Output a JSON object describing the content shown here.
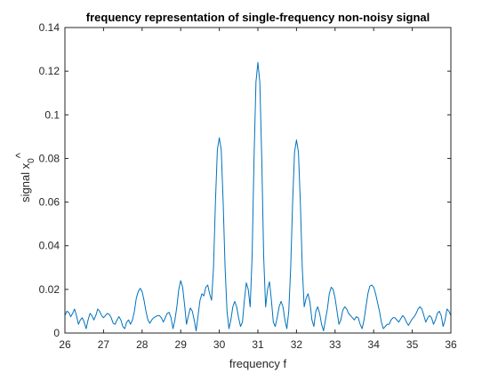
{
  "chart_data": {
    "type": "line",
    "title": "frequency representation of single-frequency non-noisy signal",
    "xlabel": "frequency f",
    "ylabel_text": "signal x",
    "ylabel_hat": "^",
    "ylabel_sub": "0",
    "xlim": [
      26,
      36
    ],
    "ylim": [
      0,
      0.14
    ],
    "xticks": [
      26,
      27,
      28,
      29,
      30,
      31,
      32,
      33,
      34,
      35,
      36
    ],
    "xtick_labels": [
      "26",
      "27",
      "28",
      "29",
      "30",
      "31",
      "32",
      "33",
      "34",
      "35",
      "36"
    ],
    "yticks": [
      0,
      0.02,
      0.04,
      0.06,
      0.08,
      0.1,
      0.12,
      0.14
    ],
    "ytick_labels": [
      "0",
      "0.02",
      "0.04",
      "0.06",
      "0.08",
      "0.1",
      "0.12",
      "0.14"
    ],
    "grid": false,
    "legend": "none",
    "series": [
      {
        "color": "#0072BD",
        "points": [
          [
            26.0,
            0.008
          ],
          [
            26.05,
            0.01
          ],
          [
            26.1,
            0.0095
          ],
          [
            26.15,
            0.0075
          ],
          [
            26.2,
            0.009
          ],
          [
            26.25,
            0.011
          ],
          [
            26.3,
            0.008
          ],
          [
            26.35,
            0.004
          ],
          [
            26.4,
            0.006
          ],
          [
            26.45,
            0.007
          ],
          [
            26.5,
            0.005
          ],
          [
            26.55,
            0.002
          ],
          [
            26.6,
            0.006
          ],
          [
            26.65,
            0.009
          ],
          [
            26.7,
            0.008
          ],
          [
            26.75,
            0.006
          ],
          [
            26.8,
            0.008
          ],
          [
            26.85,
            0.011
          ],
          [
            26.9,
            0.01
          ],
          [
            26.95,
            0.008
          ],
          [
            27.0,
            0.007
          ],
          [
            27.05,
            0.008
          ],
          [
            27.1,
            0.009
          ],
          [
            27.15,
            0.0085
          ],
          [
            27.2,
            0.007
          ],
          [
            27.25,
            0.0045
          ],
          [
            27.3,
            0.004
          ],
          [
            27.35,
            0.006
          ],
          [
            27.4,
            0.0075
          ],
          [
            27.45,
            0.006
          ],
          [
            27.5,
            0.003
          ],
          [
            27.55,
            0.002
          ],
          [
            27.6,
            0.005
          ],
          [
            27.65,
            0.006
          ],
          [
            27.7,
            0.004
          ],
          [
            27.75,
            0.006
          ],
          [
            27.8,
            0.01
          ],
          [
            27.85,
            0.016
          ],
          [
            27.9,
            0.019
          ],
          [
            27.95,
            0.0205
          ],
          [
            28.0,
            0.019
          ],
          [
            28.05,
            0.015
          ],
          [
            28.1,
            0.01
          ],
          [
            28.15,
            0.006
          ],
          [
            28.2,
            0.0045
          ],
          [
            28.25,
            0.006
          ],
          [
            28.3,
            0.007
          ],
          [
            28.35,
            0.0075
          ],
          [
            28.4,
            0.008
          ],
          [
            28.45,
            0.008
          ],
          [
            28.5,
            0.007
          ],
          [
            28.55,
            0.005
          ],
          [
            28.6,
            0.007
          ],
          [
            28.65,
            0.009
          ],
          [
            28.7,
            0.0095
          ],
          [
            28.75,
            0.007
          ],
          [
            28.8,
            0.002
          ],
          [
            28.85,
            0.006
          ],
          [
            28.9,
            0.012
          ],
          [
            28.95,
            0.02
          ],
          [
            29.0,
            0.024
          ],
          [
            29.05,
            0.021
          ],
          [
            29.1,
            0.013
          ],
          [
            29.15,
            0.004
          ],
          [
            29.2,
            0.008
          ],
          [
            29.25,
            0.0115
          ],
          [
            29.3,
            0.01
          ],
          [
            29.35,
            0.006
          ],
          [
            29.4,
            0.001
          ],
          [
            29.45,
            0.008
          ],
          [
            29.5,
            0.015
          ],
          [
            29.55,
            0.018
          ],
          [
            29.6,
            0.017
          ],
          [
            29.65,
            0.021
          ],
          [
            29.7,
            0.022
          ],
          [
            29.75,
            0.018
          ],
          [
            29.8,
            0.015
          ],
          [
            29.85,
            0.03
          ],
          [
            29.9,
            0.06
          ],
          [
            29.95,
            0.084
          ],
          [
            30.0,
            0.0895
          ],
          [
            30.05,
            0.084
          ],
          [
            30.1,
            0.06
          ],
          [
            30.15,
            0.03
          ],
          [
            30.2,
            0.01
          ],
          [
            30.25,
            0.002
          ],
          [
            30.3,
            0.006
          ],
          [
            30.35,
            0.012
          ],
          [
            30.4,
            0.0145
          ],
          [
            30.45,
            0.012
          ],
          [
            30.5,
            0.007
          ],
          [
            30.55,
            0.003
          ],
          [
            30.6,
            0.005
          ],
          [
            30.65,
            0.015
          ],
          [
            30.7,
            0.023
          ],
          [
            30.75,
            0.02
          ],
          [
            30.8,
            0.012
          ],
          [
            30.85,
            0.035
          ],
          [
            30.9,
            0.08
          ],
          [
            30.95,
            0.115
          ],
          [
            31.0,
            0.124
          ],
          [
            31.05,
            0.115
          ],
          [
            31.1,
            0.08
          ],
          [
            31.15,
            0.035
          ],
          [
            31.2,
            0.012
          ],
          [
            31.25,
            0.02
          ],
          [
            31.3,
            0.0235
          ],
          [
            31.35,
            0.015
          ],
          [
            31.4,
            0.005
          ],
          [
            31.45,
            0.003
          ],
          [
            31.5,
            0.007
          ],
          [
            31.55,
            0.012
          ],
          [
            31.6,
            0.0145
          ],
          [
            31.65,
            0.012
          ],
          [
            31.7,
            0.006
          ],
          [
            31.75,
            0.002
          ],
          [
            31.8,
            0.01
          ],
          [
            31.85,
            0.03
          ],
          [
            31.9,
            0.06
          ],
          [
            31.95,
            0.083
          ],
          [
            32.0,
            0.0885
          ],
          [
            32.05,
            0.083
          ],
          [
            32.1,
            0.06
          ],
          [
            32.15,
            0.03
          ],
          [
            32.2,
            0.012
          ],
          [
            32.25,
            0.016
          ],
          [
            32.3,
            0.018
          ],
          [
            32.35,
            0.014
          ],
          [
            32.4,
            0.006
          ],
          [
            32.45,
            0.003
          ],
          [
            32.5,
            0.01
          ],
          [
            32.55,
            0.012
          ],
          [
            32.6,
            0.009
          ],
          [
            32.65,
            0.004
          ],
          [
            32.7,
            0.001
          ],
          [
            32.75,
            0.006
          ],
          [
            32.8,
            0.011
          ],
          [
            32.85,
            0.018
          ],
          [
            32.9,
            0.021
          ],
          [
            32.95,
            0.02
          ],
          [
            33.0,
            0.016
          ],
          [
            33.05,
            0.01
          ],
          [
            33.1,
            0.004
          ],
          [
            33.15,
            0.006
          ],
          [
            33.2,
            0.0105
          ],
          [
            33.25,
            0.012
          ],
          [
            33.3,
            0.011
          ],
          [
            33.35,
            0.009
          ],
          [
            33.4,
            0.008
          ],
          [
            33.45,
            0.007
          ],
          [
            33.5,
            0.006
          ],
          [
            33.55,
            0.0075
          ],
          [
            33.6,
            0.007
          ],
          [
            33.65,
            0.004
          ],
          [
            33.7,
            0.002
          ],
          [
            33.75,
            0.006
          ],
          [
            33.8,
            0.012
          ],
          [
            33.85,
            0.018
          ],
          [
            33.9,
            0.0215
          ],
          [
            33.95,
            0.022
          ],
          [
            34.0,
            0.021
          ],
          [
            34.05,
            0.018
          ],
          [
            34.1,
            0.014
          ],
          [
            34.15,
            0.01
          ],
          [
            34.2,
            0.005
          ],
          [
            34.25,
            0.002
          ],
          [
            34.3,
            0.003
          ],
          [
            34.35,
            0.004
          ],
          [
            34.4,
            0.004
          ],
          [
            34.45,
            0.006
          ],
          [
            34.5,
            0.007
          ],
          [
            34.55,
            0.007
          ],
          [
            34.6,
            0.006
          ],
          [
            34.65,
            0.005
          ],
          [
            34.7,
            0.0065
          ],
          [
            34.75,
            0.008
          ],
          [
            34.8,
            0.007
          ],
          [
            34.85,
            0.005
          ],
          [
            34.9,
            0.0035
          ],
          [
            34.95,
            0.005
          ],
          [
            35.0,
            0.0065
          ],
          [
            35.05,
            0.0075
          ],
          [
            35.1,
            0.009
          ],
          [
            35.15,
            0.011
          ],
          [
            35.2,
            0.012
          ],
          [
            35.25,
            0.011
          ],
          [
            35.3,
            0.008
          ],
          [
            35.35,
            0.005
          ],
          [
            35.4,
            0.007
          ],
          [
            35.45,
            0.008
          ],
          [
            35.5,
            0.007
          ],
          [
            35.55,
            0.004
          ],
          [
            35.6,
            0.006
          ],
          [
            35.65,
            0.009
          ],
          [
            35.7,
            0.01
          ],
          [
            35.75,
            0.008
          ],
          [
            35.8,
            0.003
          ],
          [
            35.85,
            0.006
          ],
          [
            35.9,
            0.011
          ],
          [
            35.95,
            0.01
          ],
          [
            36.0,
            0.008
          ]
        ]
      }
    ]
  }
}
